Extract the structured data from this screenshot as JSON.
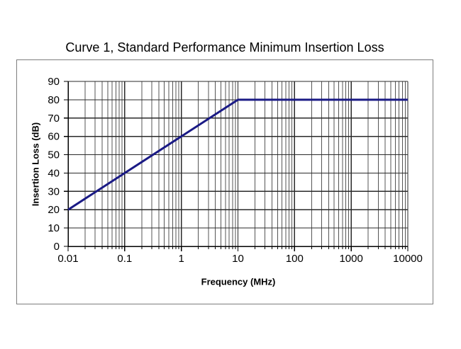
{
  "chart_data": {
    "type": "line",
    "title": "Curve 1, Standard Performance Minimum Insertion Loss",
    "xlabel": "Frequency (MHz)",
    "ylabel": "Insertion Loss (dB)",
    "x_scale": "log",
    "y_scale": "linear",
    "xlim": [
      0.01,
      10000
    ],
    "ylim": [
      0,
      90
    ],
    "x_tick_values": [
      0.01,
      0.1,
      1,
      10,
      100,
      1000,
      10000
    ],
    "x_tick_labels": [
      "0.01",
      "0.1",
      "1",
      "10",
      "100",
      "1000",
      "10000"
    ],
    "y_tick_values": [
      0,
      10,
      20,
      30,
      40,
      50,
      60,
      70,
      80,
      90
    ],
    "grid": "major horizontal every 10 dB, log decades plus 2-9 minor verticals",
    "legend": "none",
    "series": [
      {
        "name": "Curve 1 minimum insertion loss",
        "points": [
          [
            0.01,
            20
          ],
          [
            10,
            80
          ],
          [
            10000,
            80
          ]
        ]
      }
    ],
    "colors": {
      "curve": "#1a1a85",
      "grid_major": "#2a2a2a",
      "grid_minor": "#555555",
      "axis": "#000000",
      "frame": "#7d7d7d",
      "background": "#ffffff"
    }
  }
}
